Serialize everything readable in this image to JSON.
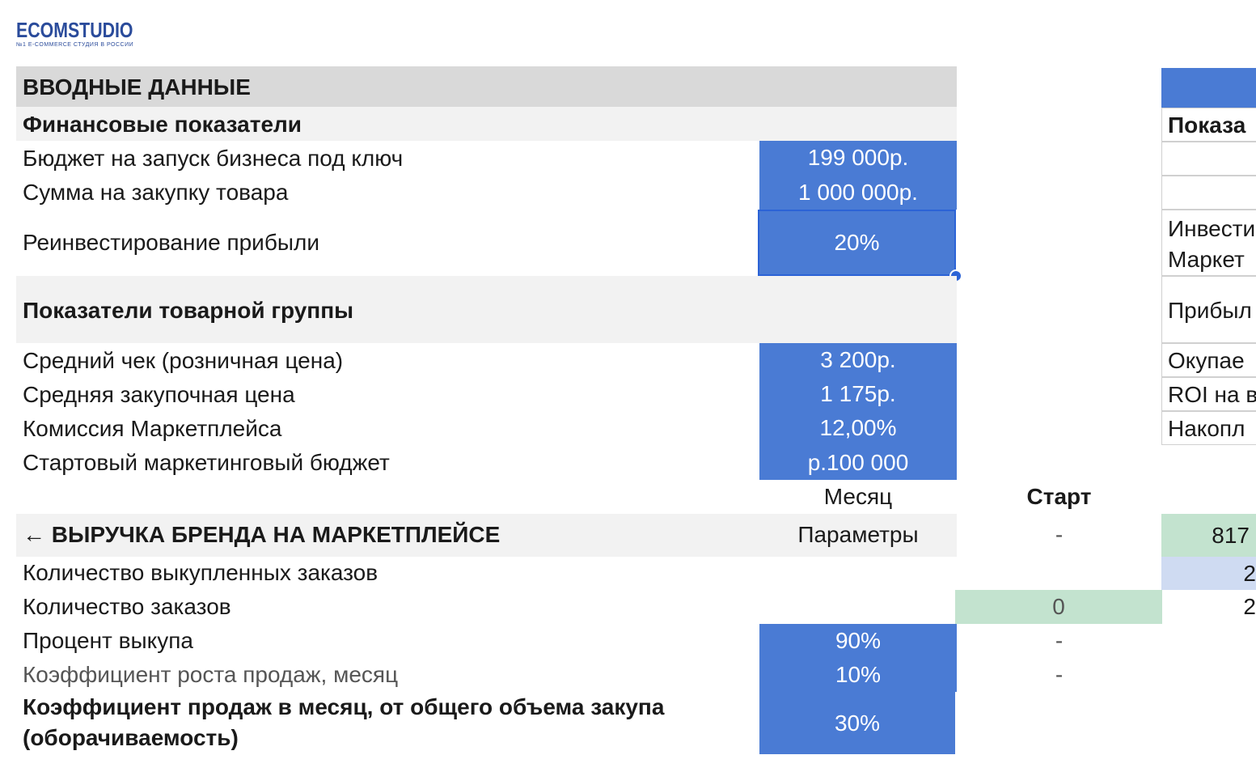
{
  "logo": {
    "text": "ECOMSTUDIO",
    "subtitle": "№1 E-COMMERCE СТУДИЯ В РОССИИ"
  },
  "input": {
    "title": "ВВОДНЫЕ ДАННЫЕ",
    "financial": {
      "title": "Финансовые показатели",
      "rows": [
        {
          "label": "Бюджет на запуск бизнеса под ключ",
          "value": "199 000р."
        },
        {
          "label": "Сумма  на закупку товара",
          "value": "1 000 000р."
        },
        {
          "label": "Реинвестирование прибыли",
          "value": "20%"
        }
      ]
    },
    "product": {
      "title": "Показатели товарной группы",
      "rows": [
        {
          "label": "Средний чек (розничная цена)",
          "value": "3 200р."
        },
        {
          "label": "Средняя закупочная цена",
          "value": "1 175р."
        },
        {
          "label": "Комиссия Маркетплейса",
          "value": "12,00%"
        },
        {
          "label": "Стартовый маркетинговый бюджет",
          "value": "р.100 000"
        }
      ]
    }
  },
  "columns": {
    "month": "Месяц",
    "start": "Старт"
  },
  "revenue": {
    "title": "← ВЫРУЧКА БРЕНДА НА МАРКЕТПЛЕЙСЕ",
    "param_label": "Параметры",
    "start_value": "-",
    "next_value": "817",
    "rows": {
      "redeemed_orders": {
        "label": "Количество выкупленных заказов",
        "next": "2"
      },
      "orders": {
        "label": "Количество заказов",
        "start": "0",
        "next": "2"
      },
      "redeem_pct": {
        "label": "Процент выкупа",
        "value": "90%",
        "start": "-"
      },
      "growth": {
        "label": "Коэффициент роста продаж, месяц",
        "value": "10%",
        "start": "-"
      },
      "turnover": {
        "label": "Коэффициент продаж в месяц, от общего объема закупа",
        "label2": "(оборачиваемость)",
        "value": "30%"
      }
    }
  },
  "right_panel": {
    "header": "Показа",
    "rows": [
      "",
      "",
      "Инвести",
      "Маркет",
      "Прибыл",
      "Окупае",
      "ROI на в",
      "Накопл"
    ]
  },
  "colors": {
    "accent": "#4a7bd4",
    "header_grey": "#d9d9d9",
    "band_grey": "#f2f2f2",
    "green": "#c3e3cf",
    "light_blue": "#cfdbf2"
  }
}
